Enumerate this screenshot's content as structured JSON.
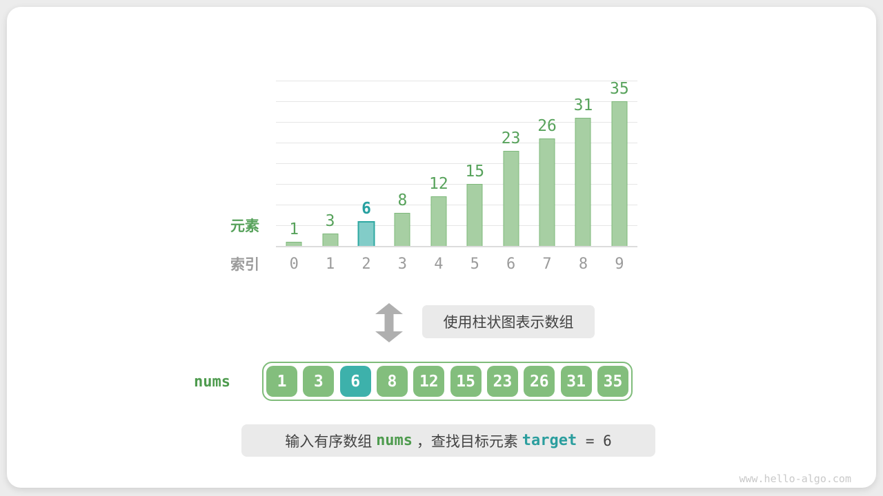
{
  "page": {
    "watermark": "www.hello-algo.com"
  },
  "colors": {
    "green_bar_fill": "#A7CFA3",
    "green_bar_edge": "#7DB87A",
    "teal_bar_fill": "#82CCC8",
    "teal_bar_edge": "#2FA8A2",
    "green_text": "#57A25B",
    "teal_text": "#27A0A0",
    "gray_text": "#9B9B9B",
    "arrow_gray": "#AFAFAF",
    "pill_bg": "#EAEAEA",
    "dark_text": "#424242",
    "cell_green": "#83BE7D",
    "cell_teal": "#3DB1AB",
    "array_border": "#7FBC7A",
    "code_green": "#4E9B4E",
    "code_teal": "#2B9E9E",
    "watermark_gray": "#C9C9C9",
    "gridline": "#E5E5E5",
    "baseline": "#DCDCDC"
  },
  "chart_data": {
    "type": "bar",
    "title": "",
    "categories": [
      "0",
      "1",
      "2",
      "3",
      "4",
      "5",
      "6",
      "7",
      "8",
      "9"
    ],
    "values": [
      1,
      3,
      6,
      8,
      12,
      15,
      23,
      26,
      31,
      35
    ],
    "highlight": {
      "index": 2,
      "value": 6
    },
    "ylabel": "元素",
    "xlabel": "索引",
    "ylim": [
      0,
      40
    ],
    "grid_step": 5,
    "grid": true,
    "legend": "none"
  },
  "transform": {
    "arrow_icon": "double-vertical-arrow",
    "caption": "使用柱状图表示数组"
  },
  "array": {
    "label": "nums",
    "values": [
      1,
      3,
      6,
      8,
      12,
      15,
      23,
      26,
      31,
      35
    ],
    "highlight_index": 2
  },
  "description": {
    "segments": [
      {
        "text": "输入有序数组 ",
        "style": "plain"
      },
      {
        "text": "nums",
        "style": "code-green"
      },
      {
        "text": " ，查找目标元素 ",
        "style": "plain"
      },
      {
        "text": "target",
        "style": "code-teal"
      },
      {
        "text": " = 6",
        "style": "mono"
      }
    ]
  }
}
